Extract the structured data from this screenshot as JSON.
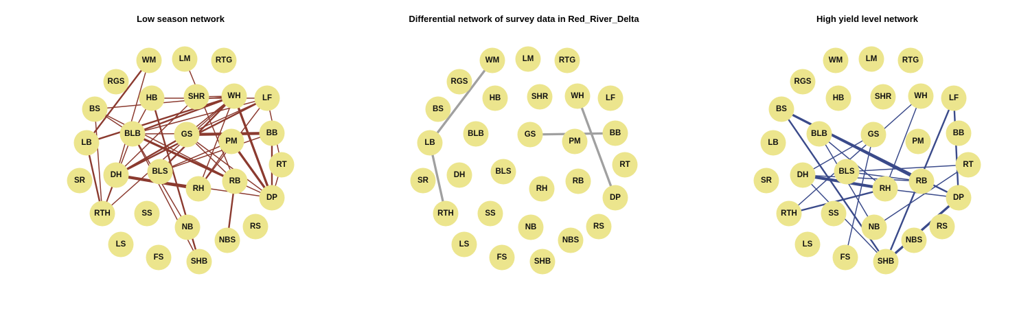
{
  "figure": {
    "colors": {
      "node_fill": "#ece58d",
      "low_edge": "#8b3a2f",
      "diff_edge": "#a0a0a0",
      "high_edge": "#3a4a8a",
      "label": "#111111"
    }
  },
  "panels": [
    {
      "key": "low",
      "title": "Low season network",
      "edge_color_key": "low_edge",
      "edges": [
        {
          "source": "WM",
          "target": "LB",
          "weight": 2
        },
        {
          "source": "WM",
          "target": "DH",
          "weight": 1
        },
        {
          "source": "LM",
          "target": "RB",
          "weight": 1
        },
        {
          "source": "BS",
          "target": "RTH",
          "weight": 1
        },
        {
          "source": "BS",
          "target": "BLB",
          "weight": 1
        },
        {
          "source": "BS",
          "target": "WH",
          "weight": 1
        },
        {
          "source": "HB",
          "target": "SHB",
          "weight": 2
        },
        {
          "source": "HB",
          "target": "LF",
          "weight": 1
        },
        {
          "source": "HB",
          "target": "BLB",
          "weight": 1
        },
        {
          "source": "SHR",
          "target": "WH",
          "weight": 1
        },
        {
          "source": "SHR",
          "target": "DH",
          "weight": 1
        },
        {
          "source": "WH",
          "target": "LB",
          "weight": 2
        },
        {
          "source": "WH",
          "target": "BLB",
          "weight": 2
        },
        {
          "source": "WH",
          "target": "GS",
          "weight": 1
        },
        {
          "source": "WH",
          "target": "BLS",
          "weight": 2
        },
        {
          "source": "WH",
          "target": "RH",
          "weight": 1
        },
        {
          "source": "WH",
          "target": "DP",
          "weight": 3
        },
        {
          "source": "WH",
          "target": "RTH",
          "weight": 1
        },
        {
          "source": "LF",
          "target": "BLB",
          "weight": 1
        },
        {
          "source": "LF",
          "target": "GS",
          "weight": 1
        },
        {
          "source": "LF",
          "target": "DH",
          "weight": 2
        },
        {
          "source": "LF",
          "target": "RT",
          "weight": 1
        },
        {
          "source": "LF",
          "target": "RH",
          "weight": 1
        },
        {
          "source": "BLB",
          "target": "RB",
          "weight": 3
        },
        {
          "source": "BLB",
          "target": "BB",
          "weight": 1
        },
        {
          "source": "BLB",
          "target": "DP",
          "weight": 1
        },
        {
          "source": "BLB",
          "target": "RTH",
          "weight": 1
        },
        {
          "source": "BLB",
          "target": "SHB",
          "weight": 1
        },
        {
          "source": "BLB",
          "target": "NB",
          "weight": 1
        },
        {
          "source": "GS",
          "target": "BB",
          "weight": 4
        },
        {
          "source": "GS",
          "target": "RB",
          "weight": 1
        },
        {
          "source": "GS",
          "target": "DH",
          "weight": 2
        },
        {
          "source": "GS",
          "target": "DP",
          "weight": 1
        },
        {
          "source": "PM",
          "target": "DP",
          "weight": 3
        },
        {
          "source": "PM",
          "target": "RH",
          "weight": 1
        },
        {
          "source": "PM",
          "target": "BLS",
          "weight": 1
        },
        {
          "source": "BB",
          "target": "DP",
          "weight": 2
        },
        {
          "source": "BB",
          "target": "BLS",
          "weight": 1
        },
        {
          "source": "RT",
          "target": "DP",
          "weight": 1
        },
        {
          "source": "DH",
          "target": "RH",
          "weight": 4
        },
        {
          "source": "DH",
          "target": "RTH",
          "weight": 1
        },
        {
          "source": "DH",
          "target": "DP",
          "weight": 1
        },
        {
          "source": "RB",
          "target": "NBS",
          "weight": 2
        },
        {
          "source": "RB",
          "target": "BS",
          "weight": 1
        },
        {
          "source": "LB",
          "target": "RTH",
          "weight": 2
        }
      ]
    },
    {
      "key": "diff",
      "title": "Differential network of survey data in Red_River_Delta",
      "edge_color_key": "diff_edge",
      "edges": [
        {
          "source": "WM",
          "target": "LB",
          "weight": 3
        },
        {
          "source": "LB",
          "target": "RTH",
          "weight": 3
        },
        {
          "source": "GS",
          "target": "BB",
          "weight": 3
        },
        {
          "source": "WH",
          "target": "DP",
          "weight": 3
        }
      ]
    },
    {
      "key": "high",
      "title": "High yield level network",
      "edge_color_key": "high_edge",
      "edges": [
        {
          "source": "BS",
          "target": "RB",
          "weight": 3
        },
        {
          "source": "BS",
          "target": "DP",
          "weight": 2
        },
        {
          "source": "BS",
          "target": "SHB",
          "weight": 2
        },
        {
          "source": "BLB",
          "target": "NB",
          "weight": 1
        },
        {
          "source": "BLB",
          "target": "RH",
          "weight": 1
        },
        {
          "source": "GS",
          "target": "DH",
          "weight": 1
        },
        {
          "source": "GS",
          "target": "FS",
          "weight": 1
        },
        {
          "source": "WH",
          "target": "RH",
          "weight": 1
        },
        {
          "source": "WH",
          "target": "RTH",
          "weight": 1
        },
        {
          "source": "LF",
          "target": "SHB",
          "weight": 2
        },
        {
          "source": "LF",
          "target": "DP",
          "weight": 2
        },
        {
          "source": "RT",
          "target": "BLS",
          "weight": 1
        },
        {
          "source": "RT",
          "target": "NB",
          "weight": 1
        },
        {
          "source": "DH",
          "target": "RH",
          "weight": 4
        },
        {
          "source": "DH",
          "target": "RB",
          "weight": 1
        },
        {
          "source": "DH",
          "target": "SHB",
          "weight": 1
        },
        {
          "source": "BLS",
          "target": "RB",
          "weight": 1
        },
        {
          "source": "RH",
          "target": "RTH",
          "weight": 2
        },
        {
          "source": "DP",
          "target": "SHB",
          "weight": 3
        },
        {
          "source": "DP",
          "target": "RH",
          "weight": 1
        }
      ]
    }
  ],
  "nodes": [
    {
      "id": "WM",
      "label": "WM"
    },
    {
      "id": "LM",
      "label": "LM"
    },
    {
      "id": "RTG",
      "label": "RTG"
    },
    {
      "id": "RGS",
      "label": "RGS"
    },
    {
      "id": "HB",
      "label": "HB"
    },
    {
      "id": "SHR",
      "label": "SHR"
    },
    {
      "id": "WH",
      "label": "WH"
    },
    {
      "id": "LF",
      "label": "LF"
    },
    {
      "id": "BS",
      "label": "BS"
    },
    {
      "id": "BLB",
      "label": "BLB"
    },
    {
      "id": "GS",
      "label": "GS"
    },
    {
      "id": "PM",
      "label": "PM"
    },
    {
      "id": "BB",
      "label": "BB"
    },
    {
      "id": "LB",
      "label": "LB"
    },
    {
      "id": "RT",
      "label": "RT"
    },
    {
      "id": "BLS",
      "label": "BLS"
    },
    {
      "id": "SR",
      "label": "SR"
    },
    {
      "id": "DH",
      "label": "DH"
    },
    {
      "id": "RH",
      "label": "RH"
    },
    {
      "id": "RB",
      "label": "RB"
    },
    {
      "id": "DP",
      "label": "DP"
    },
    {
      "id": "RTH",
      "label": "RTH"
    },
    {
      "id": "SS",
      "label": "SS"
    },
    {
      "id": "NB",
      "label": "NB"
    },
    {
      "id": "RS",
      "label": "RS"
    },
    {
      "id": "NBS",
      "label": "NBS"
    },
    {
      "id": "LS",
      "label": "LS"
    },
    {
      "id": "FS",
      "label": "FS"
    },
    {
      "id": "SHB",
      "label": "SHB"
    }
  ]
}
